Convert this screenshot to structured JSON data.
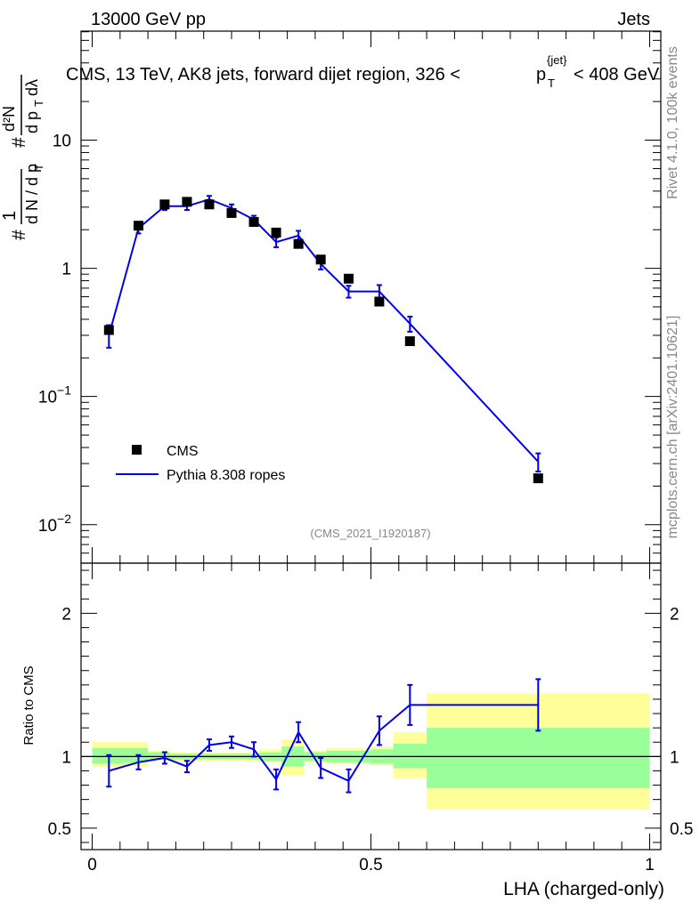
{
  "header": {
    "left_label": "13000 GeV pp",
    "right_label": "Jets",
    "plot_title_prefix": "CMS, 13 TeV, AK8 jets, forward dijet region, 326 <",
    "plot_title_var": "p",
    "plot_title_sub": "T",
    "plot_title_sup": "{jet}",
    "plot_title_suffix": "< 408 GeV",
    "side_label_top": "Rivet 4.1.0,  100k events",
    "side_label_bottom": "mcplots.cern.ch [arXiv:2401.10621]",
    "analysis_id": "(CMS_2021_I1920187)"
  },
  "ylabel_parts": {
    "hash": "#",
    "one": "1",
    "dN": "d N / d p",
    "T": "T",
    "hash2": "#",
    "dp": "d p",
    "T2": "T",
    "d2N": "d²N",
    "dlambda": "dλ"
  },
  "colors": {
    "data": "#000000",
    "mc": "#0000ee",
    "band_inner": "#99ff99",
    "band_outer": "#ffff99"
  },
  "chart_data": {
    "type": "line",
    "xlabel": "LHA (charged-only)",
    "xlim": [
      -0.02,
      1.02
    ],
    "main_ylim_log10": [
      -2.3,
      1.85
    ],
    "ratio_ylabel": "Ratio to CMS",
    "ratio_ylim": [
      0.35,
      2.35
    ],
    "x_ticks": [
      {
        "v": 0,
        "label": "0"
      },
      {
        "v": 0.5,
        "label": "0.5"
      },
      {
        "v": 1,
        "label": "1"
      }
    ],
    "main_y_ticks": [
      {
        "v": 10,
        "base": "10",
        "exp": ""
      },
      {
        "v": 1,
        "base": "1",
        "exp": ""
      },
      {
        "v": 0.1,
        "base": "10",
        "exp": "−1"
      },
      {
        "v": 0.01,
        "base": "10",
        "exp": "−2"
      }
    ],
    "ratio_y_ticks": [
      {
        "v": 2,
        "label": "2"
      },
      {
        "v": 1,
        "label": "1"
      },
      {
        "v": 0.5,
        "label": "0.5"
      }
    ],
    "legend": [
      {
        "name": "CMS",
        "style": "marker"
      },
      {
        "name": "Pythia 8.308 ropes",
        "style": "line"
      }
    ],
    "bin_edges": [
      0,
      0.06,
      0.1,
      0.14,
      0.18,
      0.22,
      0.26,
      0.3,
      0.34,
      0.38,
      0.42,
      0.46,
      0.5,
      0.54,
      0.6,
      1.0
    ],
    "cms": {
      "name": "CMS",
      "x": [
        0.03,
        0.083,
        0.13,
        0.17,
        0.21,
        0.25,
        0.29,
        0.33,
        0.37,
        0.41,
        0.46,
        0.515,
        0.57,
        0.8
      ],
      "y": [
        0.33,
        2.15,
        3.15,
        3.3,
        3.15,
        2.7,
        2.3,
        1.9,
        1.55,
        1.17,
        0.83,
        0.55,
        0.27,
        0.023
      ]
    },
    "pythia": {
      "name": "Pythia 8.308 ropes",
      "x": [
        0.03,
        0.083,
        0.13,
        0.17,
        0.21,
        0.25,
        0.29,
        0.33,
        0.37,
        0.41,
        0.46,
        0.515,
        0.57,
        0.8
      ],
      "y": [
        0.3,
        2.05,
        3.05,
        3.05,
        3.45,
        2.95,
        2.4,
        1.6,
        1.8,
        1.08,
        0.66,
        0.66,
        0.37,
        0.031
      ],
      "err": [
        0.06,
        0.18,
        0.2,
        0.2,
        0.22,
        0.2,
        0.17,
        0.14,
        0.16,
        0.1,
        0.07,
        0.08,
        0.05,
        0.005
      ]
    },
    "ratio": {
      "x": [
        0.03,
        0.083,
        0.13,
        0.17,
        0.21,
        0.25,
        0.29,
        0.33,
        0.37,
        0.41,
        0.46,
        0.515,
        0.57,
        0.8
      ],
      "y": [
        0.9,
        0.96,
        0.99,
        0.93,
        1.08,
        1.1,
        1.05,
        0.84,
        1.17,
        0.92,
        0.83,
        1.18,
        1.36,
        1.36
      ],
      "err": [
        0.11,
        0.05,
        0.04,
        0.04,
        0.04,
        0.04,
        0.05,
        0.07,
        0.07,
        0.07,
        0.08,
        0.1,
        0.14,
        0.18
      ],
      "step_from": 0.57,
      "step_to": 0.8,
      "band_inner": [
        {
          "x0": 0.0,
          "x1": 0.06,
          "lo": 0.95,
          "hi": 1.06
        },
        {
          "x0": 0.06,
          "x1": 0.1,
          "lo": 0.96,
          "hi": 1.06
        },
        {
          "x0": 0.1,
          "x1": 0.14,
          "lo": 0.98,
          "hi": 1.03
        },
        {
          "x0": 0.14,
          "x1": 0.18,
          "lo": 0.98,
          "hi": 1.02
        },
        {
          "x0": 0.18,
          "x1": 0.22,
          "lo": 0.98,
          "hi": 1.02
        },
        {
          "x0": 0.22,
          "x1": 0.26,
          "lo": 0.98,
          "hi": 1.02
        },
        {
          "x0": 0.26,
          "x1": 0.3,
          "lo": 0.98,
          "hi": 1.02
        },
        {
          "x0": 0.3,
          "x1": 0.34,
          "lo": 0.97,
          "hi": 1.03
        },
        {
          "x0": 0.34,
          "x1": 0.38,
          "lo": 0.93,
          "hi": 1.07
        },
        {
          "x0": 0.38,
          "x1": 0.42,
          "lo": 0.97,
          "hi": 1.03
        },
        {
          "x0": 0.42,
          "x1": 0.46,
          "lo": 0.96,
          "hi": 1.04
        },
        {
          "x0": 0.46,
          "x1": 0.5,
          "lo": 0.96,
          "hi": 1.04
        },
        {
          "x0": 0.5,
          "x1": 0.54,
          "lo": 0.95,
          "hi": 1.05
        },
        {
          "x0": 0.54,
          "x1": 0.6,
          "lo": 0.92,
          "hi": 1.09
        },
        {
          "x0": 0.6,
          "x1": 1.0,
          "lo": 0.78,
          "hi": 1.2
        }
      ],
      "band_outer": [
        {
          "x0": 0.0,
          "x1": 0.06,
          "lo": 0.93,
          "hi": 1.1
        },
        {
          "x0": 0.06,
          "x1": 0.1,
          "lo": 0.93,
          "hi": 1.1
        },
        {
          "x0": 0.1,
          "x1": 0.14,
          "lo": 0.97,
          "hi": 1.04
        },
        {
          "x0": 0.14,
          "x1": 0.18,
          "lo": 0.97,
          "hi": 1.03
        },
        {
          "x0": 0.18,
          "x1": 0.22,
          "lo": 0.97,
          "hi": 1.03
        },
        {
          "x0": 0.22,
          "x1": 0.26,
          "lo": 0.97,
          "hi": 1.03
        },
        {
          "x0": 0.26,
          "x1": 0.3,
          "lo": 0.97,
          "hi": 1.03
        },
        {
          "x0": 0.3,
          "x1": 0.34,
          "lo": 0.96,
          "hi": 1.05
        },
        {
          "x0": 0.34,
          "x1": 0.38,
          "lo": 0.87,
          "hi": 1.12
        },
        {
          "x0": 0.38,
          "x1": 0.42,
          "lo": 0.96,
          "hi": 1.04
        },
        {
          "x0": 0.42,
          "x1": 0.46,
          "lo": 0.95,
          "hi": 1.06
        },
        {
          "x0": 0.46,
          "x1": 0.5,
          "lo": 0.95,
          "hi": 1.06
        },
        {
          "x0": 0.5,
          "x1": 0.54,
          "lo": 0.94,
          "hi": 1.07
        },
        {
          "x0": 0.54,
          "x1": 0.6,
          "lo": 0.85,
          "hi": 1.17
        },
        {
          "x0": 0.6,
          "x1": 1.0,
          "lo": 0.63,
          "hi": 1.44
        }
      ]
    }
  }
}
